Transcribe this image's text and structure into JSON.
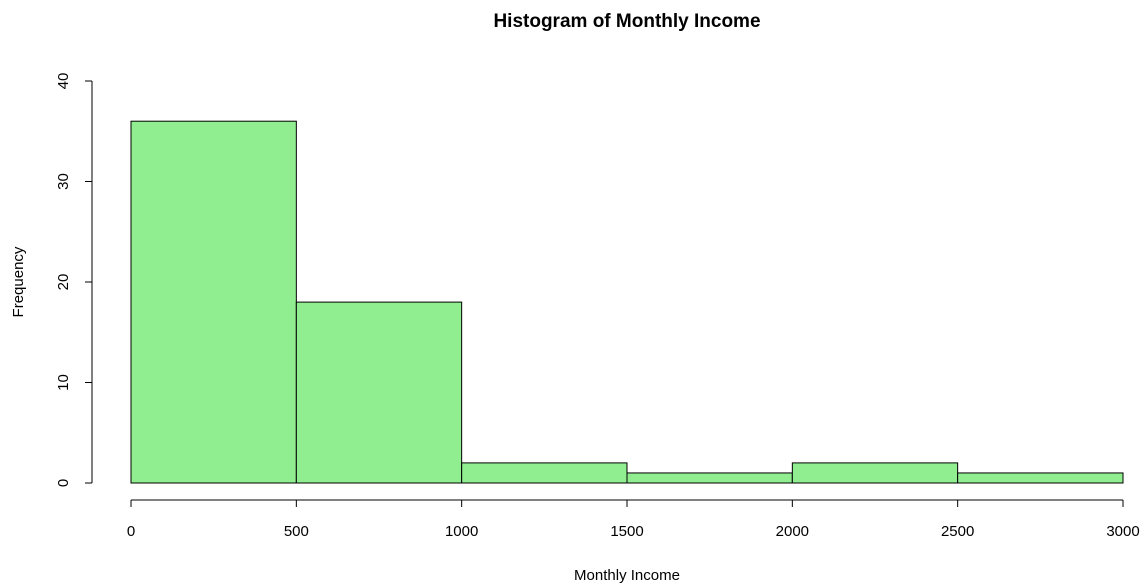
{
  "chart_data": {
    "type": "histogram",
    "title": "Histogram of Monthly Income",
    "x_label": "Monthly Income",
    "y_label": "Frequency",
    "bins": [
      0,
      500,
      1000,
      1500,
      2000,
      2500,
      3000
    ],
    "values": [
      36,
      18,
      2,
      1,
      2,
      1
    ],
    "color": "#90ee90",
    "xlim": [
      0,
      3000
    ],
    "xticks": [
      0,
      500,
      1000,
      1500,
      2000,
      2500,
      3000
    ],
    "ylim": [
      0,
      40
    ],
    "yticks": [
      0,
      10,
      20,
      30,
      40
    ]
  }
}
